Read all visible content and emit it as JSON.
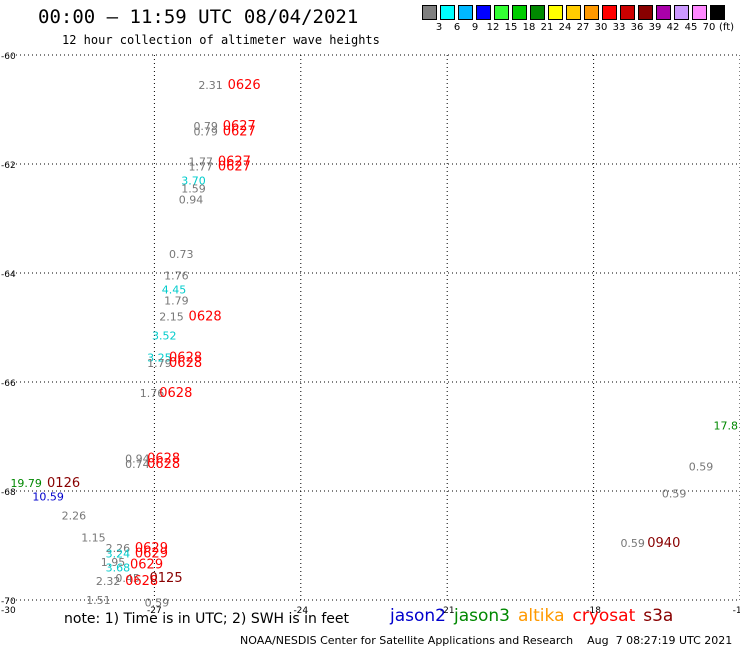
{
  "header": {
    "title": "00:00 – 11:59 UTC 08/04/2021",
    "subtitle": "12 hour collection of altimeter wave heights"
  },
  "color_scale": {
    "unit_label": "(ft)",
    "bins": [
      {
        "label": "3",
        "color": "#7f7f7f"
      },
      {
        "label": "6",
        "color": "#00ffff"
      },
      {
        "label": "9",
        "color": "#00b8ff"
      },
      {
        "label": "12",
        "color": "#0000ff"
      },
      {
        "label": "15",
        "color": "#33ff33"
      },
      {
        "label": "18",
        "color": "#00cc00"
      },
      {
        "label": "21",
        "color": "#008800"
      },
      {
        "label": "24",
        "color": "#ffff00"
      },
      {
        "label": "27",
        "color": "#ffcc00"
      },
      {
        "label": "30",
        "color": "#ff9900"
      },
      {
        "label": "33",
        "color": "#ff0000"
      },
      {
        "label": "36",
        "color": "#cc0000"
      },
      {
        "label": "39",
        "color": "#880000"
      },
      {
        "label": "42",
        "color": "#aa00aa"
      },
      {
        "label": "45",
        "color": "#cc99ff"
      },
      {
        "label": "70",
        "color": "#ff88ff"
      },
      {
        "label": "",
        "color": "#000000"
      }
    ]
  },
  "footer": {
    "note": "note: 1) Time is in UTC; 2) SWH is in feet",
    "satellites": [
      {
        "name": "jason2",
        "color": "#0000cc"
      },
      {
        "name": "jason3",
        "color": "#008800"
      },
      {
        "name": "altika",
        "color": "#ff9900"
      },
      {
        "name": "cryosat",
        "color": "#ff0000"
      },
      {
        "name": "s3a",
        "color": "#880000"
      }
    ],
    "credit": "NOAA/NESDIS Center for Satellite Applications and Research    Aug  7 08:27:19 UTC 2021"
  },
  "chart_data": {
    "type": "scatter",
    "title": "00:00 – 11:59 UTC 08/04/2021",
    "subtitle": "12 hour collection of altimeter wave heights",
    "xlim": [
      -30,
      -15
    ],
    "ylim": [
      -70,
      -60
    ],
    "x_ticks": [
      {
        "value": -27,
        "label": "-27"
      },
      {
        "value": -24,
        "label": "-24"
      },
      {
        "value": -21,
        "label": "-21"
      },
      {
        "value": -18,
        "label": "-18"
      },
      {
        "value": -15,
        "label": "-15"
      }
    ],
    "y_ticks": [
      {
        "value": -60,
        "label": "-60"
      },
      {
        "value": -62,
        "label": "-62"
      },
      {
        "value": -64,
        "label": "-64"
      },
      {
        "value": -66,
        "label": "-66"
      },
      {
        "value": -68,
        "label": "-68"
      },
      {
        "value": -70,
        "label": "-70"
      }
    ],
    "corner_label": "-30",
    "grid": "dotted",
    "labels": [
      {
        "text": "2.31",
        "x": -26.1,
        "y": -60.55,
        "color": "#777777",
        "size": 11
      },
      {
        "text": "0626",
        "x": -25.5,
        "y": -60.55,
        "color": "#ff0000",
        "size": 13
      },
      {
        "text": "0.79",
        "x": -26.2,
        "y": -61.3,
        "color": "#777777",
        "size": 11
      },
      {
        "text": "0.79",
        "x": -26.2,
        "y": -61.4,
        "color": "#777777",
        "size": 11
      },
      {
        "text": "0627",
        "x": -25.6,
        "y": -61.3,
        "color": "#ff0000",
        "size": 13
      },
      {
        "text": "0627",
        "x": -25.6,
        "y": -61.4,
        "color": "#ff0000",
        "size": 13
      },
      {
        "text": "1.77",
        "x": -26.3,
        "y": -61.95,
        "color": "#777777",
        "size": 11
      },
      {
        "text": "1.77",
        "x": -26.3,
        "y": -62.05,
        "color": "#777777",
        "size": 11
      },
      {
        "text": "0627",
        "x": -25.7,
        "y": -61.95,
        "color": "#ff0000",
        "size": 13
      },
      {
        "text": "0627",
        "x": -25.7,
        "y": -62.05,
        "color": "#ff0000",
        "size": 13
      },
      {
        "text": "3.70",
        "x": -26.45,
        "y": -62.3,
        "color": "#00cccc",
        "size": 11
      },
      {
        "text": "1.59",
        "x": -26.45,
        "y": -62.45,
        "color": "#777777",
        "size": 11
      },
      {
        "text": "0.94",
        "x": -26.5,
        "y": -62.65,
        "color": "#777777",
        "size": 11
      },
      {
        "text": "0.73",
        "x": -26.7,
        "y": -63.65,
        "color": "#777777",
        "size": 11
      },
      {
        "text": "1.76",
        "x": -26.8,
        "y": -64.05,
        "color": "#777777",
        "size": 11
      },
      {
        "text": "4.45",
        "x": -26.85,
        "y": -64.3,
        "color": "#00cccc",
        "size": 11
      },
      {
        "text": "1.79",
        "x": -26.8,
        "y": -64.5,
        "color": "#777777",
        "size": 11
      },
      {
        "text": "2.15",
        "x": -26.9,
        "y": -64.8,
        "color": "#777777",
        "size": 11
      },
      {
        "text": "0628",
        "x": -26.3,
        "y": -64.8,
        "color": "#ff0000",
        "size": 13
      },
      {
        "text": "3.52",
        "x": -27.05,
        "y": -65.15,
        "color": "#00cccc",
        "size": 11
      },
      {
        "text": "3.25",
        "x": -27.15,
        "y": -65.55,
        "color": "#00cccc",
        "size": 11
      },
      {
        "text": "1.79",
        "x": -27.15,
        "y": -65.65,
        "color": "#777777",
        "size": 11
      },
      {
        "text": "0628",
        "x": -26.7,
        "y": -65.55,
        "color": "#ff0000",
        "size": 13
      },
      {
        "text": "0628",
        "x": -26.7,
        "y": -65.65,
        "color": "#ff0000",
        "size": 13
      },
      {
        "text": "1.76",
        "x": -27.3,
        "y": -66.2,
        "color": "#777777",
        "size": 11
      },
      {
        "text": "0628",
        "x": -26.9,
        "y": -66.2,
        "color": "#ff0000",
        "size": 13
      },
      {
        "text": "0.94",
        "x": -27.6,
        "y": -67.4,
        "color": "#777777",
        "size": 11
      },
      {
        "text": "0.74",
        "x": -27.6,
        "y": -67.5,
        "color": "#777777",
        "size": 11
      },
      {
        "text": "0628",
        "x": -27.15,
        "y": -67.4,
        "color": "#ff0000",
        "size": 13
      },
      {
        "text": "0628",
        "x": -27.15,
        "y": -67.5,
        "color": "#ff0000",
        "size": 13
      },
      {
        "text": "19.79",
        "x": -29.95,
        "y": -67.85,
        "color": "#008800",
        "size": 11
      },
      {
        "text": "0126",
        "x": -29.2,
        "y": -67.85,
        "color": "#880000",
        "size": 13
      },
      {
        "text": "10.59",
        "x": -29.5,
        "y": -68.1,
        "color": "#0000cc",
        "size": 11
      },
      {
        "text": "2.26",
        "x": -28.9,
        "y": -68.45,
        "color": "#777777",
        "size": 11
      },
      {
        "text": "1.15",
        "x": -28.5,
        "y": -68.85,
        "color": "#777777",
        "size": 11
      },
      {
        "text": "2.26",
        "x": -28.0,
        "y": -69.05,
        "color": "#777777",
        "size": 11
      },
      {
        "text": "3.24",
        "x": -28.0,
        "y": -69.15,
        "color": "#00cccc",
        "size": 11
      },
      {
        "text": "1.95",
        "x": -28.1,
        "y": -69.3,
        "color": "#777777",
        "size": 11
      },
      {
        "text": "3.68",
        "x": -28.0,
        "y": -69.4,
        "color": "#00cccc",
        "size": 11
      },
      {
        "text": "2.32",
        "x": -28.2,
        "y": -69.65,
        "color": "#777777",
        "size": 11
      },
      {
        "text": "0.45",
        "x": -27.8,
        "y": -69.6,
        "color": "#777777",
        "size": 11
      },
      {
        "text": "0629",
        "x": -27.4,
        "y": -69.05,
        "color": "#ff0000",
        "size": 13
      },
      {
        "text": "0629",
        "x": -27.4,
        "y": -69.15,
        "color": "#ff0000",
        "size": 13
      },
      {
        "text": "0629",
        "x": -27.5,
        "y": -69.35,
        "color": "#ff0000",
        "size": 13
      },
      {
        "text": "0628",
        "x": -27.6,
        "y": -69.65,
        "color": "#ff0000",
        "size": 13
      },
      {
        "text": "0125",
        "x": -27.1,
        "y": -69.6,
        "color": "#880000",
        "size": 13
      },
      {
        "text": "1.51",
        "x": -28.4,
        "y": -70.0,
        "color": "#777777",
        "size": 11
      },
      {
        "text": "0.59",
        "x": -27.2,
        "y": -70.05,
        "color": "#777777",
        "size": 11
      },
      {
        "text": "17.8",
        "x": -15.25,
        "y": -66.8,
        "color": "#008800",
        "size": 11
      },
      {
        "text": "0.59",
        "x": -16.05,
        "y": -67.55,
        "color": "#777777",
        "size": 11
      },
      {
        "text": "0.59",
        "x": -16.6,
        "y": -68.05,
        "color": "#777777",
        "size": 11
      },
      {
        "text": "0.59",
        "x": -17.45,
        "y": -68.95,
        "color": "#777777",
        "size": 11
      },
      {
        "text": "0940",
        "x": -16.9,
        "y": -68.95,
        "color": "#880000",
        "size": 13
      }
    ]
  }
}
